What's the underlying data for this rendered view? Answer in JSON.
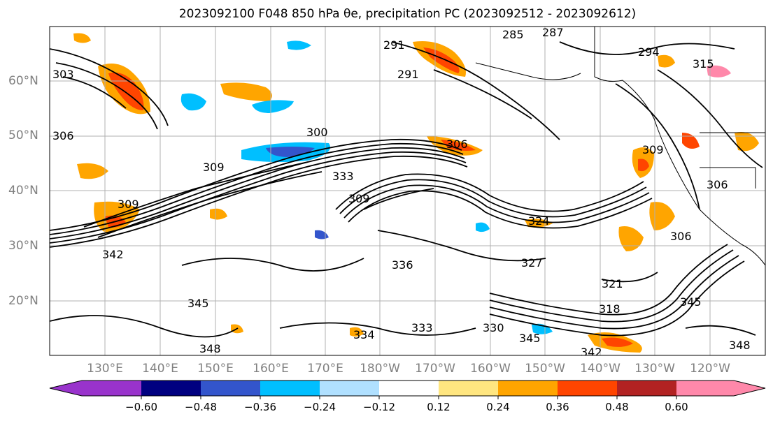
{
  "title": "2023092100 F048 850 hPa θe, precipitation PC (2023092512 - 2023092612)",
  "latitude_labels": [
    "60°N",
    "50°N",
    "40°N",
    "30°N",
    "20°N"
  ],
  "longitude_labels": [
    "130°E",
    "140°E",
    "150°E",
    "160°E",
    "170°E",
    "180°W",
    "170°W",
    "160°W",
    "150°W",
    "140°W",
    "130°W",
    "120°W"
  ],
  "colorbar": {
    "colors": [
      "#9933cc",
      "#000080",
      "#3355cc",
      "#00bfff",
      "#b0e0ff",
      "#ffffff",
      "#ffe680",
      "#ffa500",
      "#ff4500",
      "#b22222",
      "#ff88aa"
    ],
    "tick_labels": [
      "−0.60",
      "−0.48",
      "−0.36",
      "−0.24",
      "−0.12",
      "0.12",
      "0.24",
      "0.36",
      "0.48",
      "0.60"
    ]
  },
  "contour_labels": [
    "285",
    "287",
    "291",
    "291",
    "294",
    "315",
    "303",
    "306",
    "300",
    "306",
    "309",
    "309",
    "333",
    "309",
    "306",
    "309",
    "324",
    "342",
    "327",
    "306",
    "345",
    "336",
    "321",
    "318",
    "345",
    "333",
    "330",
    "345",
    "342",
    "348",
    "348",
    "334"
  ]
}
